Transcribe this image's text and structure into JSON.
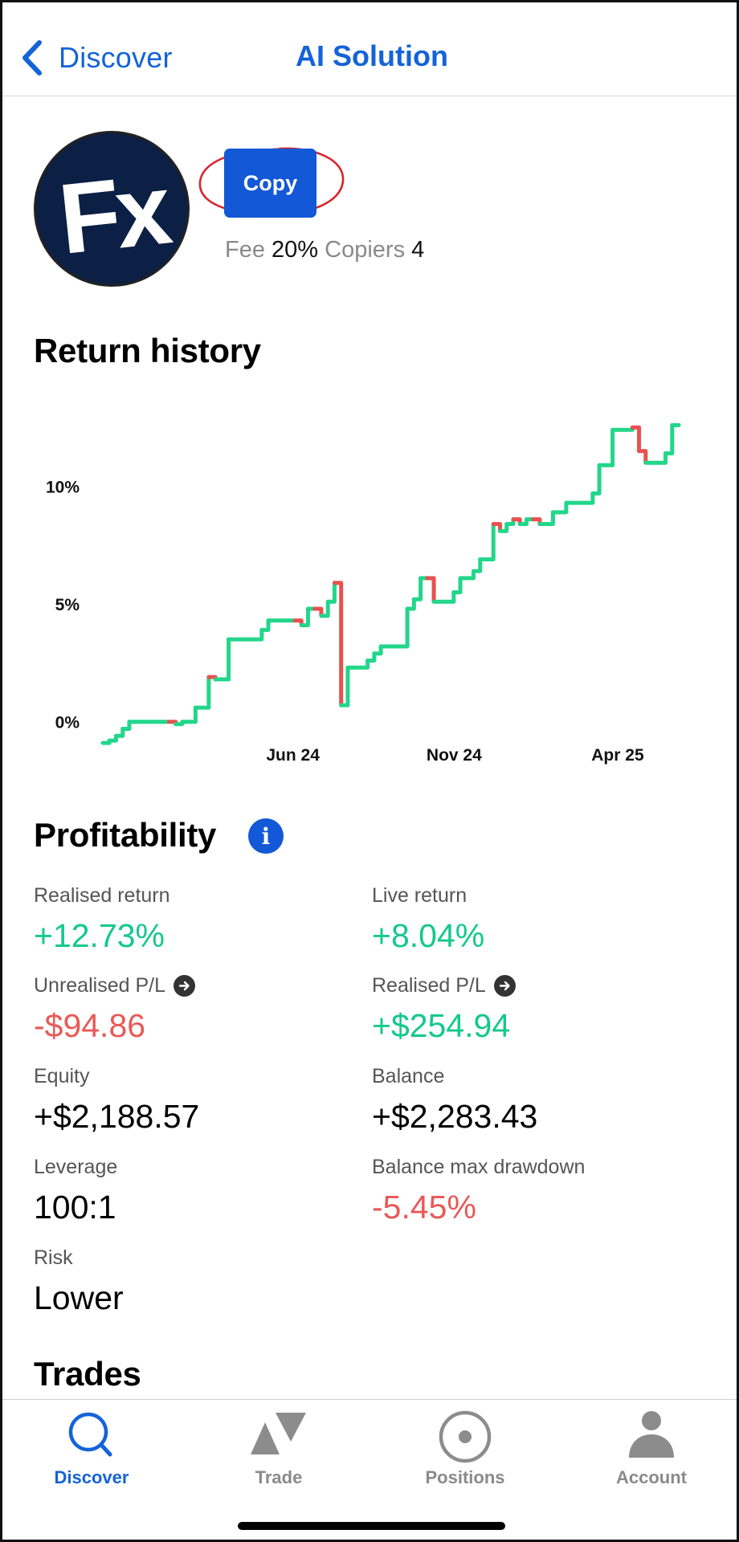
{
  "header": {
    "back_label": "Discover",
    "title": "AI Solution"
  },
  "profile": {
    "avatar_text": "Fx",
    "copy_label": "Copy",
    "fee_label": "Fee",
    "fee_value": "20%",
    "copiers_label": "Copiers",
    "copiers_value": "4"
  },
  "return_history": {
    "title": "Return history"
  },
  "chart_data": {
    "type": "line",
    "title": "Return history",
    "xlabel": "",
    "ylabel": "",
    "x_ticks": [
      "Jun 24",
      "Nov 24",
      "Apr 25"
    ],
    "y_ticks": [
      "10%",
      "5%",
      "0%"
    ],
    "y_tick_values": [
      10,
      5,
      0
    ],
    "ylim": [
      -1,
      13.5
    ],
    "grid": false,
    "colors": {
      "up": "#22d68a",
      "down": "#e8514e"
    },
    "series": [
      {
        "values": [
          -0.9,
          -0.8,
          -0.6,
          -0.3,
          0.0,
          0.0,
          0.0,
          0.0,
          0.0,
          0.0,
          0.0,
          -0.1,
          0.0,
          0.0,
          0.6,
          0.6,
          1.9,
          1.8,
          1.8,
          3.5,
          3.5,
          3.5,
          3.5,
          3.5,
          3.9,
          4.3,
          4.3,
          4.3,
          4.3,
          4.3,
          4.1,
          4.8,
          4.8,
          4.5,
          5.1,
          5.9,
          0.7,
          2.3,
          2.3,
          2.3,
          2.6,
          2.9,
          3.2,
          3.2,
          3.2,
          3.2,
          4.8,
          5.2,
          6.1,
          6.1,
          5.1,
          5.1,
          5.1,
          5.5,
          6.1,
          6.1,
          6.4,
          6.9,
          6.9,
          8.4,
          8.1,
          8.4,
          8.6,
          8.4,
          8.6,
          8.6,
          8.4,
          8.4,
          8.9,
          8.9,
          9.3,
          9.3,
          9.3,
          9.3,
          9.7,
          10.9,
          10.9,
          12.4,
          12.4,
          12.4,
          12.5,
          11.5,
          11.0,
          11.0,
          11.0,
          11.4,
          12.6,
          12.6
        ]
      }
    ]
  },
  "profitability": {
    "title": "Profitability",
    "info_icon": "info-icon",
    "stats": [
      {
        "label": "Realised return",
        "value": "+12.73%"
      },
      {
        "label": "Live return",
        "value": "+8.04%"
      },
      {
        "label": "Unrealised P/L",
        "value": "-$94.86"
      },
      {
        "label": "Realised P/L",
        "value": "+$254.94"
      },
      {
        "label": "Equity",
        "value": "+$2,188.57"
      },
      {
        "label": "Balance",
        "value": "+$2,283.43"
      },
      {
        "label": "Leverage",
        "value": "100:1"
      },
      {
        "label": "Balance max drawdown",
        "value": "-5.45%"
      },
      {
        "label": "Risk",
        "value": "Lower"
      }
    ]
  },
  "trades": {
    "title": "Trades"
  },
  "tabbar": {
    "tabs": [
      {
        "label": "Discover",
        "icon": "search-icon"
      },
      {
        "label": "Trade",
        "icon": "trade-triangles-icon"
      },
      {
        "label": "Positions",
        "icon": "positions-target-icon"
      },
      {
        "label": "Account",
        "icon": "person-icon"
      }
    ]
  }
}
